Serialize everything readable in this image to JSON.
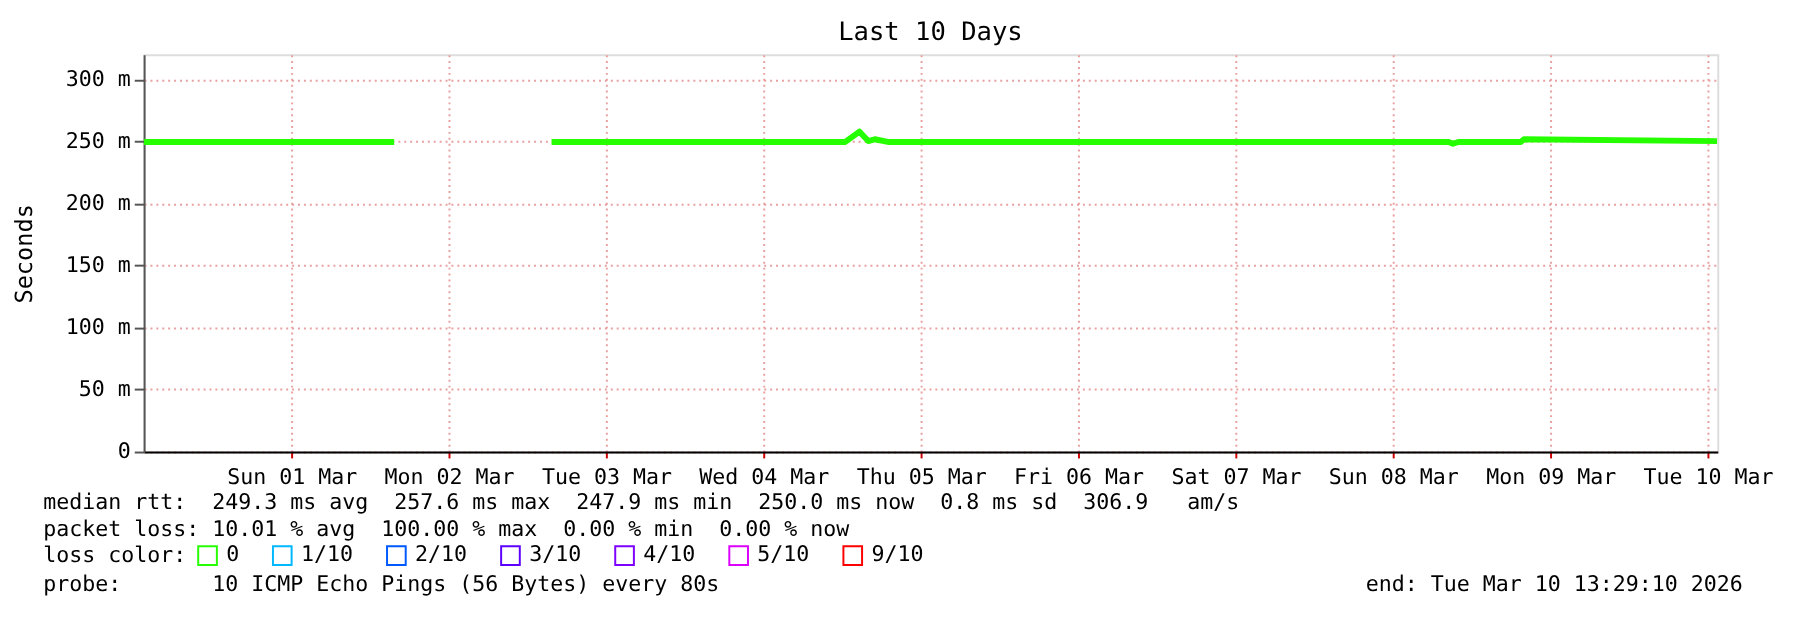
{
  "chart_data": {
    "type": "line",
    "title": "Last 10 Days",
    "ylabel": "Seconds",
    "legend_title": "loss color:",
    "xlim": [
      "2026-02-28T13:29",
      "2026-03-10T13:29"
    ],
    "xticks": [
      {
        "value": "2026-03-01T12:00",
        "label": "Sun 01 Mar"
      },
      {
        "value": "2026-03-02T12:00",
        "label": "Mon 02 Mar"
      },
      {
        "value": "2026-03-03T12:00",
        "label": "Tue 03 Mar"
      },
      {
        "value": "2026-03-04T12:00",
        "label": "Wed 04 Mar"
      },
      {
        "value": "2026-03-05T12:00",
        "label": "Thu 05 Mar"
      },
      {
        "value": "2026-03-06T12:00",
        "label": "Fri 06 Mar"
      },
      {
        "value": "2026-03-07T12:00",
        "label": "Sat 07 Mar"
      },
      {
        "value": "2026-03-08T12:00",
        "label": "Sun 08 Mar"
      },
      {
        "value": "2026-03-09T12:00",
        "label": "Mon 09 Mar"
      },
      {
        "value": "2026-03-10T12:00",
        "label": "Tue 10 Mar"
      }
    ],
    "ylim": [
      0,
      320
    ],
    "yticks": [
      0,
      {
        "value": 50,
        "label": "50 m"
      },
      {
        "value": 100,
        "label": "100 m"
      },
      {
        "value": 150,
        "label": "150 m"
      },
      {
        "value": 200,
        "label": "200 m"
      },
      {
        "value": 250,
        "label": "250 m"
      },
      {
        "value": 300,
        "label": "300 m"
      }
    ],
    "grid": true,
    "legend": "bottom",
    "marker": "none",
    "line_style": "solid",
    "x": [
      "2026-02-28T13:29",
      "2026-03-01T00:00",
      "2026-03-01T17:00",
      "2026-03-02T03:42",
      "2026-03-02T04:00",
      "2026-03-03T03:42",
      "2026-03-03T12:00",
      "2026-03-04T12:00",
      "2026-03-05T00:30",
      "2026-03-05T02:40",
      "2026-03-05T04:00",
      "2026-03-05T05:00",
      "2026-03-05T07:00",
      "2026-03-06T12:00",
      "2026-03-07T12:00",
      "2026-03-08T20:30",
      "2026-03-08T21:10",
      "2026-03-08T22:00",
      "2026-03-09T07:30",
      "2026-03-09T08:00",
      "2026-03-10T13:29"
    ],
    "series": [
      {
        "name": "0",
        "color": "#26ff00",
        "values": [
          249.3,
          249.3,
          249.3,
          249.3,
          null,
          249.3,
          249.3,
          249.3,
          249.3,
          257.6,
          250,
          251.5,
          249.3,
          249.3,
          249.3,
          249.3,
          247.9,
          249.3,
          249.3,
          251.5,
          250
        ]
      },
      {
        "name": "1/10",
        "color": "#00b8ff",
        "values": [
          null,
          null,
          null,
          null,
          null,
          null,
          null,
          null,
          null,
          null,
          null,
          null,
          null,
          null,
          null,
          null,
          null,
          null,
          null,
          null,
          null
        ]
      },
      {
        "name": "2/10",
        "color": "#0059ff",
        "values": [
          null,
          null,
          null,
          null,
          null,
          null,
          null,
          null,
          null,
          null,
          null,
          null,
          null,
          null,
          null,
          null,
          null,
          null,
          null,
          null,
          null
        ]
      },
      {
        "name": "3/10",
        "color": "#5e00ff",
        "values": [
          null,
          null,
          null,
          null,
          null,
          null,
          null,
          null,
          null,
          null,
          null,
          null,
          null,
          null,
          null,
          null,
          null,
          null,
          null,
          null,
          null
        ]
      },
      {
        "name": "4/10",
        "color": "#7e00ff",
        "values": [
          null,
          null,
          null,
          null,
          null,
          null,
          null,
          null,
          null,
          null,
          null,
          null,
          null,
          null,
          null,
          null,
          null,
          null,
          null,
          null,
          null
        ]
      },
      {
        "name": "5/10",
        "color": "#dd00ff",
        "values": [
          null,
          null,
          null,
          null,
          null,
          null,
          null,
          null,
          null,
          null,
          null,
          null,
          null,
          null,
          null,
          null,
          null,
          null,
          null,
          null,
          null
        ]
      },
      {
        "name": "9/10",
        "color": "#ff0000",
        "values": [
          null,
          null,
          null,
          null,
          null,
          null,
          null,
          null,
          null,
          null,
          null,
          null,
          null,
          null,
          null,
          null,
          null,
          null,
          null,
          null,
          null
        ]
      }
    ],
    "annotations": [
      "median rtt:  249.3 ms avg  257.6 ms max  247.9 ms min  250.0 ms now  0.8 ms sd  306.9   am/s",
      "packet loss: 10.01 % avg  100.00 % max  0.00 % min  0.00 % now",
      "probe:       10 ICMP Echo Pings (56 Bytes) every 80s",
      "end: Tue Mar 10 13:29:10 2026"
    ]
  }
}
